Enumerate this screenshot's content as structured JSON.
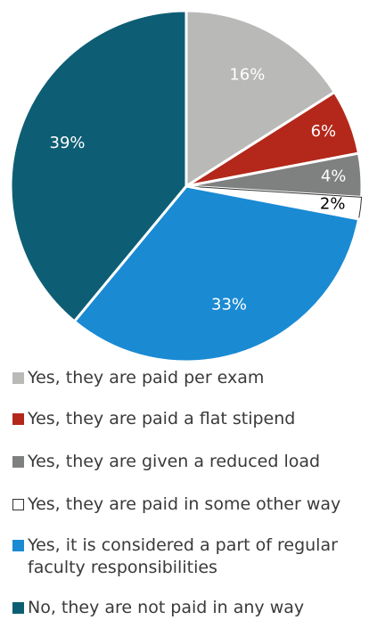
{
  "chart_data": {
    "type": "pie",
    "categories": [
      "Yes, they are paid per exam",
      "Yes, they are paid a flat stipend",
      "Yes, they are given a reduced load",
      "Yes, they are paid in some other way",
      "Yes, it is considered a part of regular faculty responsibilities",
      "No, they are not paid in any way"
    ],
    "values": [
      16,
      6,
      4,
      2,
      33,
      39
    ],
    "value_labels": [
      "16%",
      "6%",
      "4%",
      "2%",
      "33%",
      "39%"
    ],
    "colors": [
      "#b9b9b8",
      "#b3281a",
      "#7f8080",
      "#ffffff",
      "#1a8ad3",
      "#0d5e74"
    ]
  }
}
